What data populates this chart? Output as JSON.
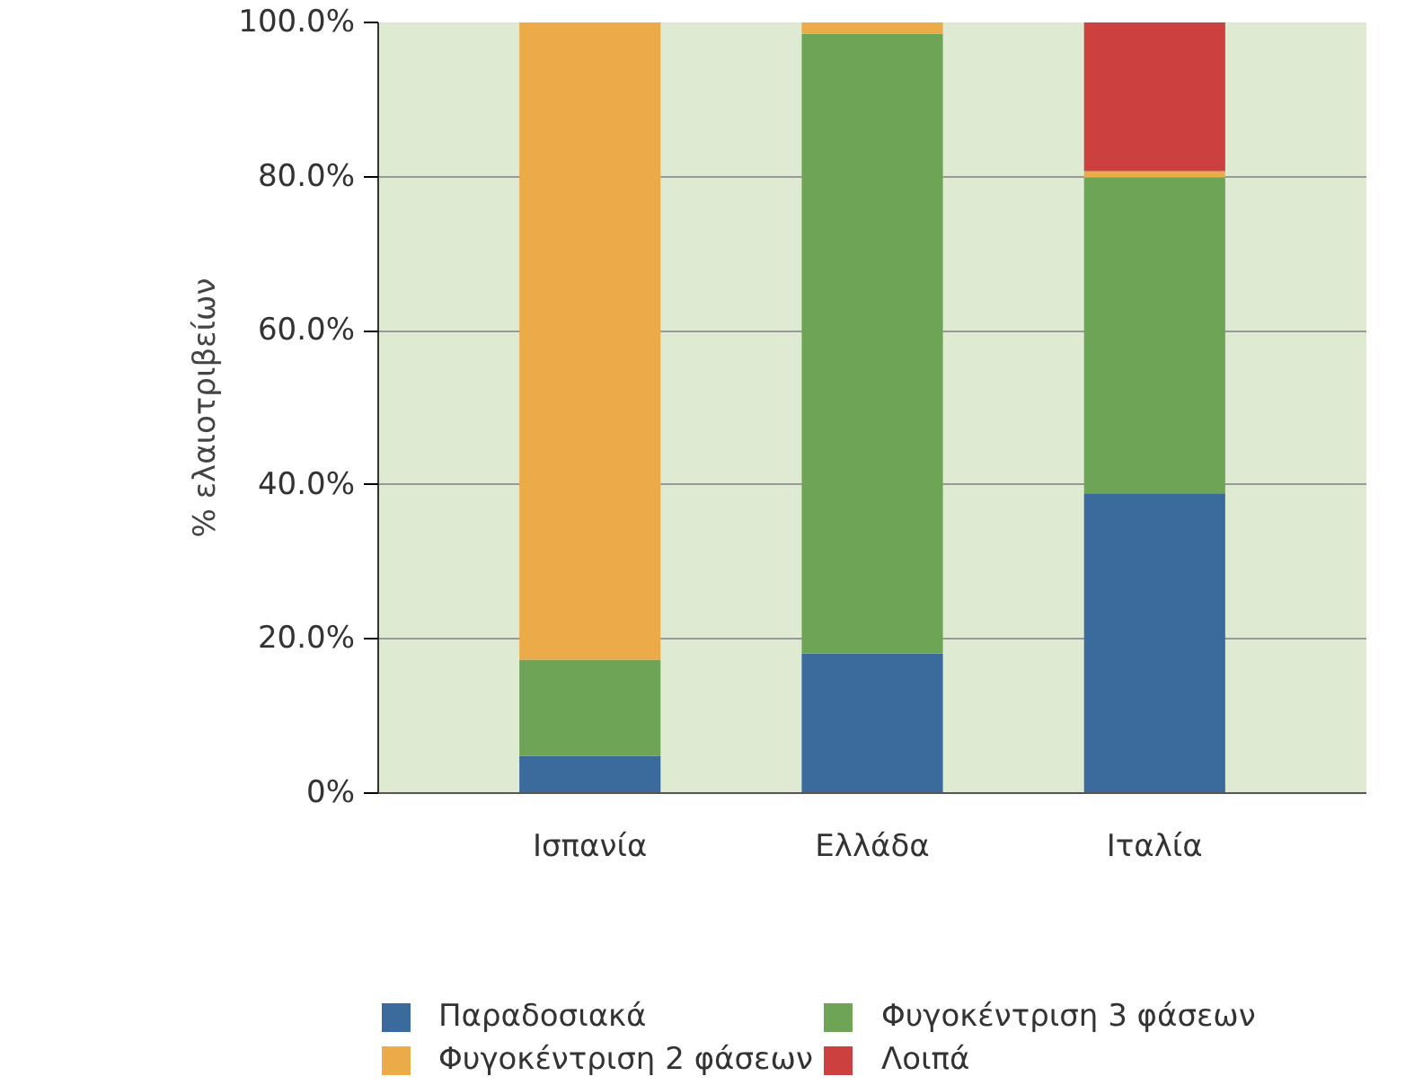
{
  "chart_data": {
    "type": "bar",
    "stacked": true,
    "ylabel": "% ελαιοτριβείων",
    "categories": [
      "Ισπανία",
      "Ελλάδα",
      "Ιταλία"
    ],
    "series": [
      {
        "name": "Παραδοσιακά",
        "color": "#3a6b9c",
        "values": [
          4.8,
          18.1,
          38.9
        ]
      },
      {
        "name": "Φυγοκέντριση 3 φάσεων",
        "color": "#6ea456",
        "values": [
          12.5,
          80.4,
          41.0
        ]
      },
      {
        "name": "Φυγοκέντριση 2 φάσεων",
        "color": "#eaab48",
        "values": [
          82.7,
          1.5,
          0.8
        ]
      },
      {
        "name": "Λοιπά",
        "color": "#cc4040",
        "values": [
          0,
          0,
          19.3
        ]
      }
    ],
    "ylim": [
      0,
      100
    ],
    "yticks": [
      {
        "value": 0,
        "label": "0%"
      },
      {
        "value": 20,
        "label": "20.0%"
      },
      {
        "value": 40,
        "label": "40.0%"
      },
      {
        "value": 60,
        "label": "60.0%"
      },
      {
        "value": 80,
        "label": "80.0%"
      },
      {
        "value": 100,
        "label": "100.0%"
      }
    ],
    "grid": "y",
    "legend": "bottom"
  }
}
